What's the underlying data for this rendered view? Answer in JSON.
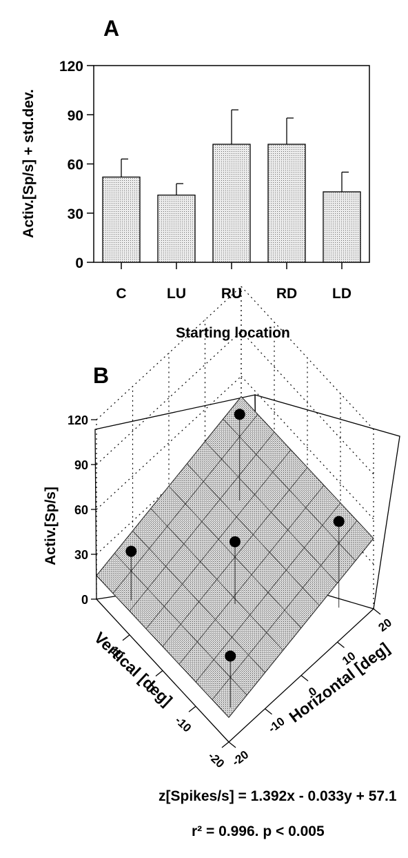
{
  "chart_data": [
    {
      "panel": "A",
      "type": "bar",
      "categories": [
        "C",
        "LU",
        "RU",
        "RD",
        "LD"
      ],
      "values": [
        52,
        41,
        72,
        72,
        43
      ],
      "errors": [
        11,
        7,
        21,
        16,
        12
      ],
      "ylabel": "Activ.[Sp/s] + std.dev.",
      "xlabel": "Starting location",
      "ylim": [
        0,
        120
      ],
      "yticks": [
        0,
        30,
        60,
        90,
        120
      ],
      "bar_fill": "#d4d4d4"
    },
    {
      "panel": "B",
      "type": "scatter",
      "projection": "3d",
      "zlabel": "Activ.[Sp/s]",
      "ylabel": "Vertical [deg]",
      "xlabel": "Horizontal [deg]",
      "zticks": [
        0,
        30,
        60,
        90,
        120
      ],
      "yticks": [
        10,
        0,
        -10,
        -20
      ],
      "xticks": [
        -20,
        -10,
        0,
        10,
        20
      ],
      "zlim": [
        0,
        120
      ],
      "points": [
        {
          "x": 0,
          "y": 0,
          "z": 52
        },
        {
          "x": -15,
          "y": 15,
          "z": 41
        },
        {
          "x": 15,
          "y": 15,
          "z": 72
        },
        {
          "x": 15,
          "y": -15,
          "z": 72
        },
        {
          "x": -15,
          "y": -15,
          "z": 43
        }
      ],
      "fit_plane": {
        "a": 1.392,
        "b": -0.033,
        "c": 57.1
      },
      "grid": true,
      "surface_fill": "#c8c8c8"
    }
  ],
  "panel_labels": {
    "a": "A",
    "b": "B"
  },
  "equation": "z[Spikes/s] = 1.392x - 0.033y + 57.1",
  "stats": "r² = 0.996. p < 0.005"
}
